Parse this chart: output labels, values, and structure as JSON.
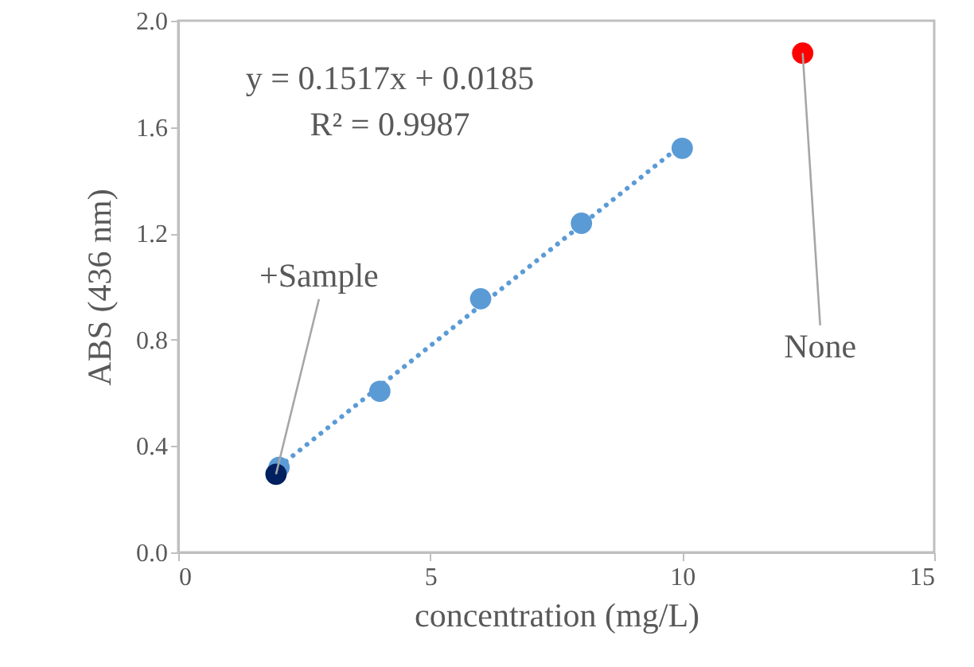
{
  "chart_data": {
    "type": "scatter",
    "xlabel": "concentration (mg/L)",
    "ylabel": "ABS (436 nm)",
    "xlim": [
      0,
      15
    ],
    "xticks": [
      0,
      5,
      10,
      15
    ],
    "ylim": [
      0,
      2.0
    ],
    "yticks": [
      {
        "value": 0,
        "label": "0.0"
      },
      0.4,
      0.8,
      1.2,
      1.6,
      {
        "value": 2.0,
        "label": "2.0"
      }
    ],
    "grid": false,
    "marker": "circle",
    "series": [
      {
        "type": "line",
        "color": "#5b9bd5",
        "line_style": "dotted",
        "marker": "none",
        "x": [
          2,
          10
        ],
        "values": [
          0.322,
          1.535
        ]
      },
      {
        "color": "#5b9bd5",
        "x": [
          2,
          4,
          6,
          8,
          10
        ],
        "values": [
          0.32,
          0.606,
          0.954,
          1.238,
          1.52
        ]
      },
      {
        "color": "#002060",
        "x": [
          1.94
        ],
        "values": [
          0.294
        ]
      },
      {
        "color": "#ff0000",
        "x": [
          12.39
        ],
        "values": [
          1.878
        ]
      }
    ],
    "annotations": [
      "y = 0.1517x + 0.0185",
      "R² = 0.9987",
      {
        "text": "+Sample",
        "x": 1.94,
        "y": 0.294
      },
      {
        "text": "None",
        "x": 12.39,
        "y": 1.878
      }
    ]
  }
}
